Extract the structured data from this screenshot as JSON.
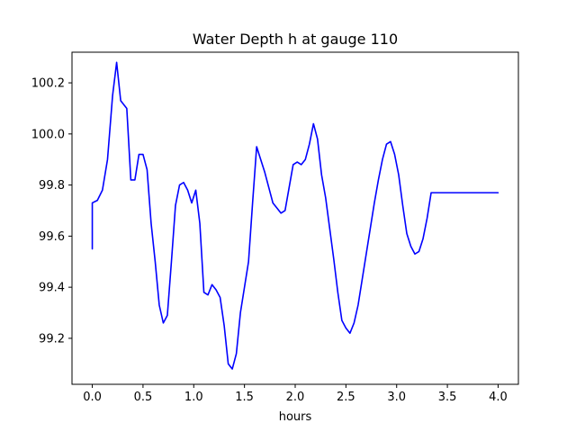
{
  "chart_data": {
    "type": "line",
    "title": "Water Depth h at gauge 110",
    "xlabel": "hours",
    "ylabel": "",
    "xlim": [
      -0.2,
      4.2
    ],
    "ylim": [
      99.02,
      100.32
    ],
    "x_ticks": [
      0.0,
      0.5,
      1.0,
      1.5,
      2.0,
      2.5,
      3.0,
      3.5,
      4.0
    ],
    "x_tick_labels": [
      "0.0",
      "0.5",
      "1.0",
      "1.5",
      "2.0",
      "2.5",
      "3.0",
      "3.5",
      "4.0"
    ],
    "y_ticks": [
      99.2,
      99.4,
      99.6,
      99.8,
      100.0,
      100.2
    ],
    "y_tick_labels": [
      "99.2",
      "99.4",
      "99.6",
      "99.8",
      "100.0",
      "100.2"
    ],
    "grid": false,
    "legend": "none",
    "series": [
      {
        "color": "#0000ff",
        "x": [
          0.0,
          0.0,
          0.05,
          0.1,
          0.15,
          0.2,
          0.24,
          0.28,
          0.3,
          0.34,
          0.38,
          0.42,
          0.46,
          0.5,
          0.54,
          0.58,
          0.62,
          0.66,
          0.7,
          0.74,
          0.78,
          0.82,
          0.86,
          0.9,
          0.94,
          0.98,
          1.02,
          1.06,
          1.1,
          1.14,
          1.18,
          1.22,
          1.26,
          1.3,
          1.34,
          1.38,
          1.42,
          1.46,
          1.5,
          1.54,
          1.58,
          1.62,
          1.66,
          1.7,
          1.74,
          1.78,
          1.82,
          1.86,
          1.9,
          1.94,
          1.98,
          2.02,
          2.06,
          2.1,
          2.14,
          2.18,
          2.22,
          2.26,
          2.3,
          2.34,
          2.38,
          2.42,
          2.46,
          2.5,
          2.54,
          2.58,
          2.62,
          2.66,
          2.7,
          2.74,
          2.78,
          2.82,
          2.86,
          2.9,
          2.94,
          2.98,
          3.02,
          3.06,
          3.1,
          3.14,
          3.18,
          3.22,
          3.26,
          3.3,
          3.34,
          3.38,
          3.42,
          3.46,
          3.5,
          3.54,
          3.58,
          3.62,
          3.66,
          3.7,
          3.74,
          3.78,
          3.82,
          3.86,
          3.9,
          3.94,
          3.98,
          4.0
        ],
        "y": [
          99.55,
          99.73,
          99.74,
          99.78,
          99.9,
          100.15,
          100.28,
          100.13,
          100.12,
          100.1,
          99.82,
          99.82,
          99.92,
          99.92,
          99.86,
          99.65,
          99.5,
          99.33,
          99.26,
          99.29,
          99.5,
          99.72,
          99.8,
          99.81,
          99.78,
          99.73,
          99.78,
          99.65,
          99.38,
          99.37,
          99.41,
          99.39,
          99.36,
          99.25,
          99.1,
          99.08,
          99.14,
          99.3,
          99.4,
          99.5,
          99.73,
          99.95,
          99.9,
          99.85,
          99.79,
          99.73,
          99.71,
          99.69,
          99.7,
          99.79,
          99.88,
          99.89,
          99.88,
          99.9,
          99.96,
          100.04,
          99.98,
          99.84,
          99.75,
          99.63,
          99.51,
          99.38,
          99.27,
          99.24,
          99.22,
          99.26,
          99.33,
          99.43,
          99.53,
          99.63,
          99.73,
          99.82,
          99.9,
          99.96,
          99.97,
          99.92,
          99.84,
          99.72,
          99.61,
          99.56,
          99.53,
          99.54,
          99.59,
          99.67,
          99.77,
          99.77,
          99.77,
          99.77,
          99.77,
          99.77,
          99.77,
          99.77,
          99.77,
          99.77,
          99.77,
          99.77,
          99.77,
          99.77,
          99.77,
          99.77,
          99.77,
          99.77
        ]
      }
    ]
  }
}
